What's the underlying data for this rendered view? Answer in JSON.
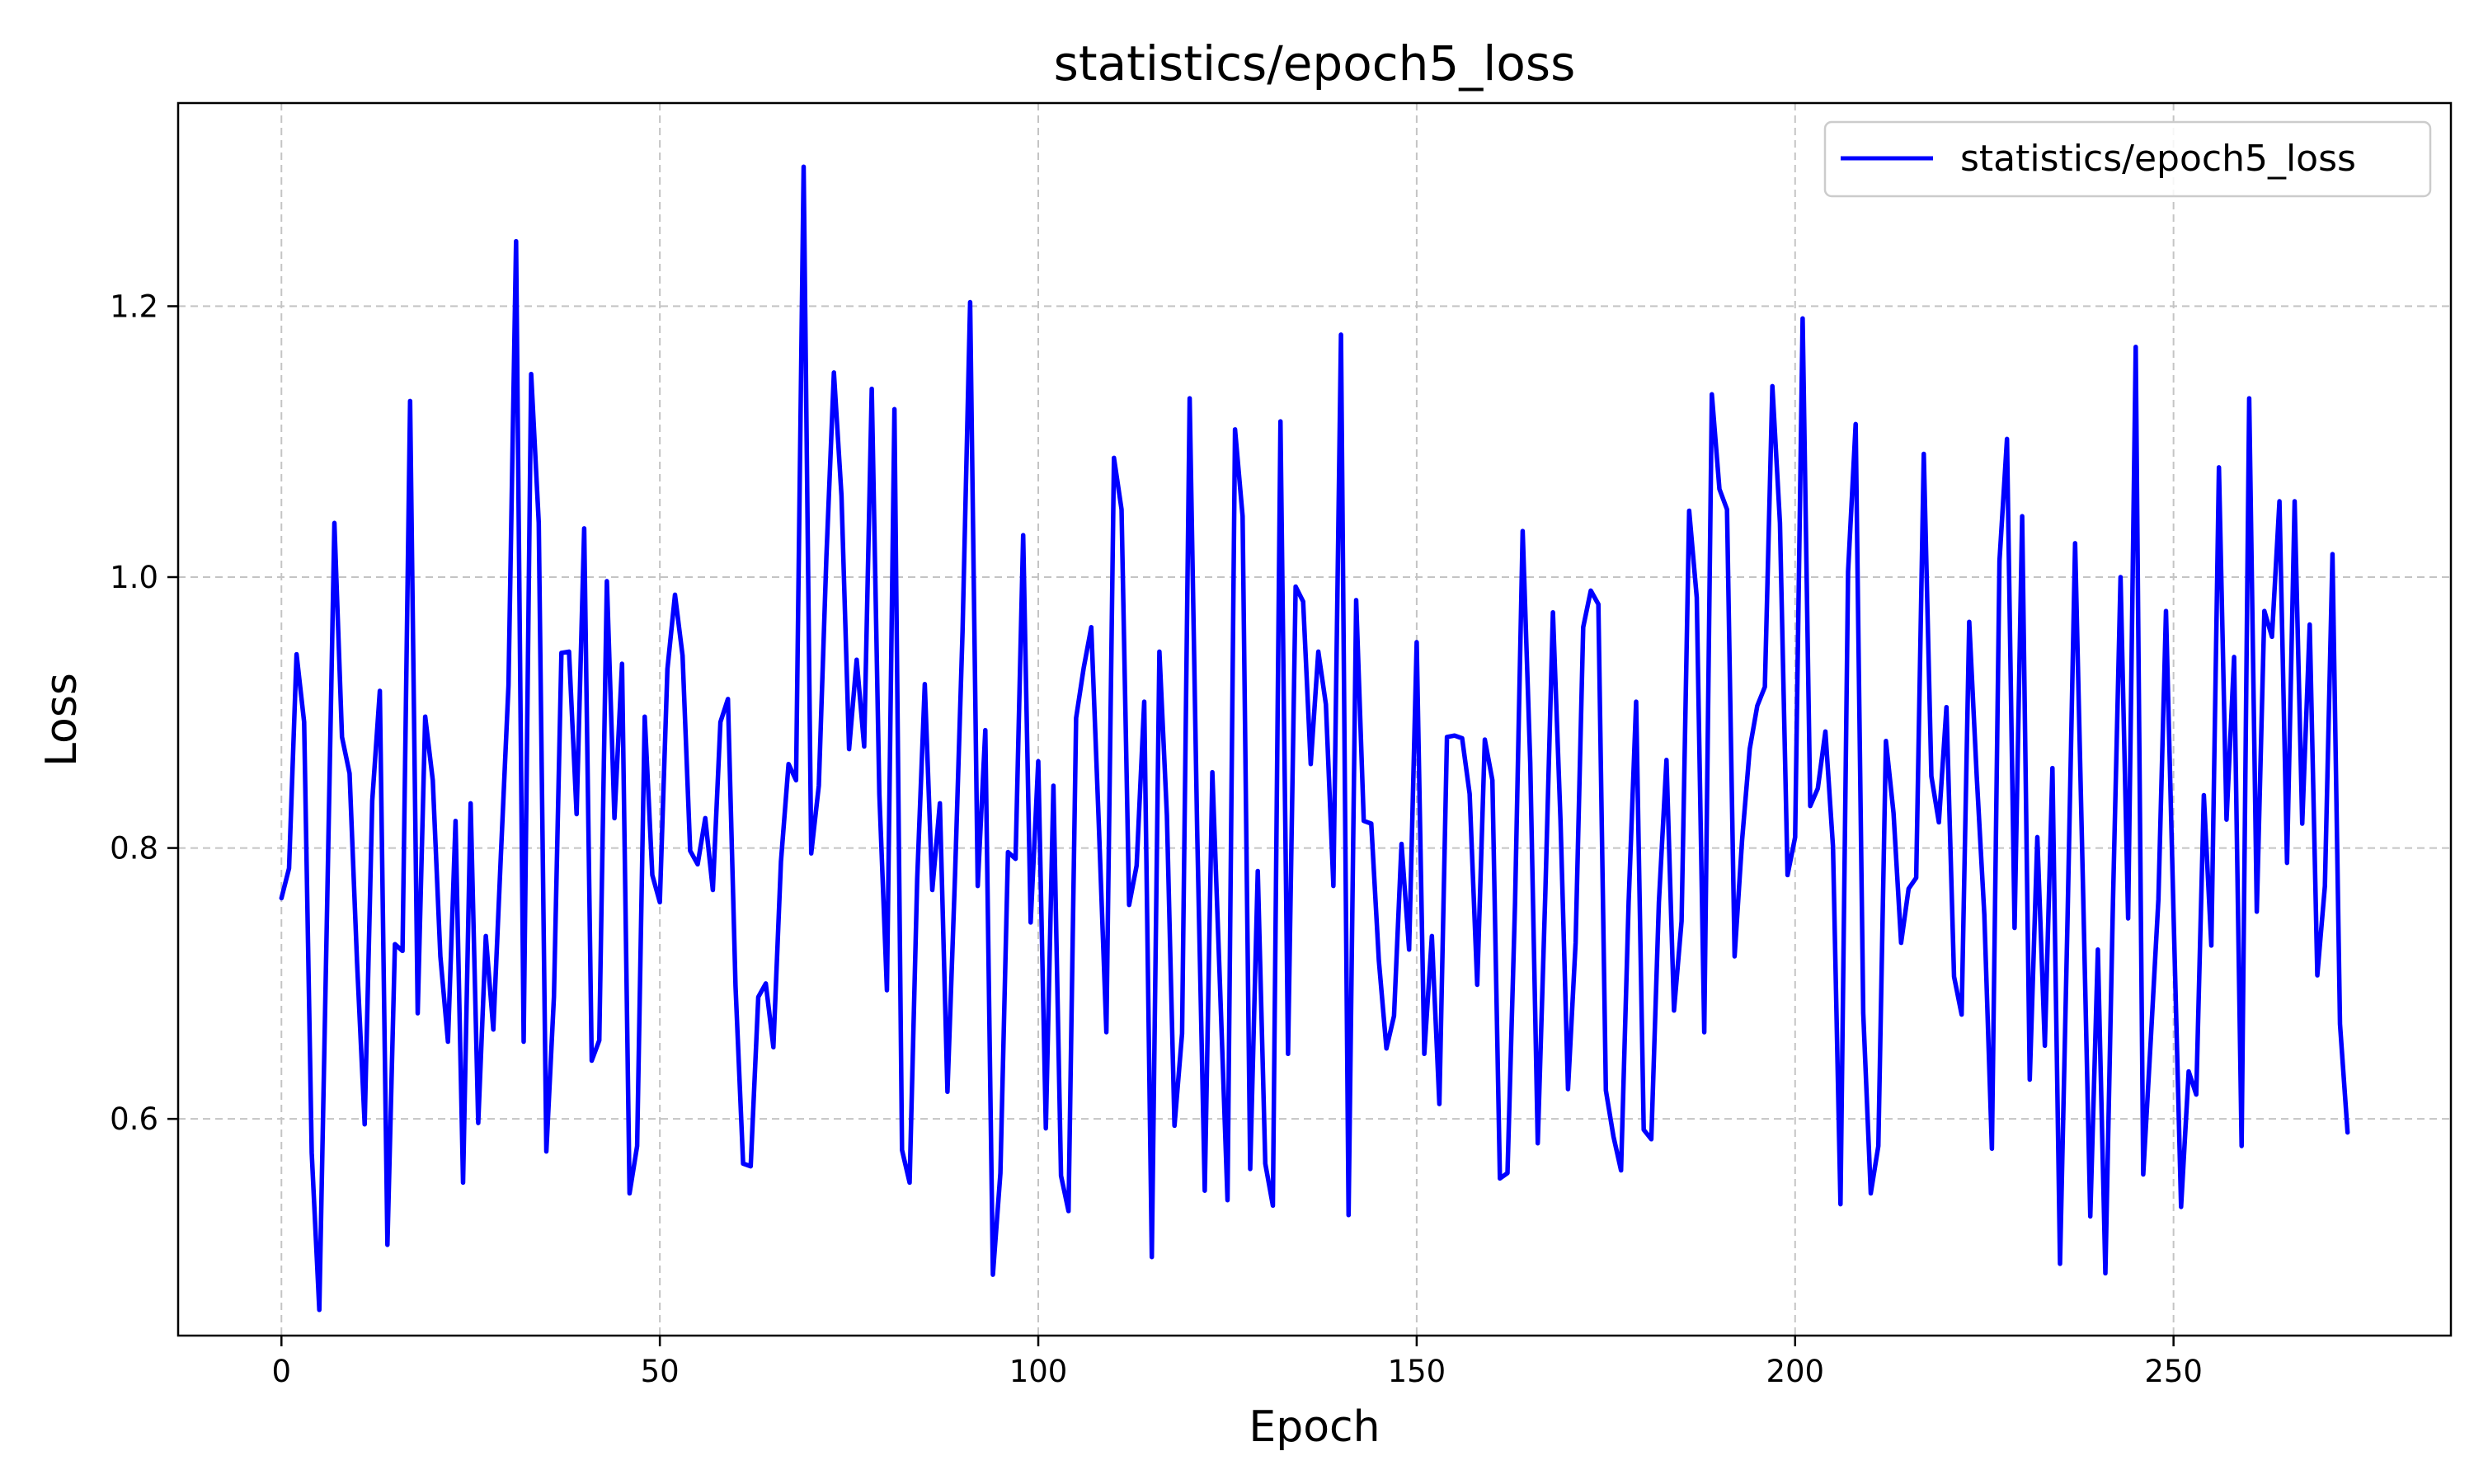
{
  "chart_data": {
    "type": "line",
    "title": "statistics/epoch5_loss",
    "xlabel": "Epoch",
    "ylabel": "Loss",
    "xlim": [
      -13.65,
      286.65
    ],
    "ylim": [
      0.44,
      1.35
    ],
    "xticks": [
      0,
      50,
      100,
      150,
      200,
      250
    ],
    "yticks": [
      0.6,
      0.8,
      1.0,
      1.2
    ],
    "ytick_labels": [
      "0.6",
      "0.8",
      "1.0",
      "1.2"
    ],
    "grid": true,
    "legend_position": "top-right",
    "series": [
      {
        "name": "statistics/epoch5_loss",
        "color": "#0000ff",
        "x": [
          0,
          1,
          2,
          3,
          4,
          5,
          6,
          7,
          8,
          9,
          10,
          11,
          12,
          13,
          14,
          15,
          16,
          17,
          18,
          19,
          20,
          21,
          22,
          23,
          24,
          25,
          26,
          27,
          28,
          29,
          30,
          31,
          32,
          33,
          34,
          35,
          36,
          37,
          38,
          39,
          40,
          41,
          42,
          43,
          44,
          45,
          46,
          47,
          48,
          49,
          50,
          51,
          52,
          53,
          54,
          55,
          56,
          57,
          58,
          59,
          60,
          61,
          62,
          63,
          64,
          65,
          66,
          67,
          68,
          69,
          70,
          71,
          72,
          73,
          74,
          75,
          76,
          77,
          78,
          79,
          80,
          81,
          82,
          83,
          84,
          85,
          86,
          87,
          88,
          89,
          90,
          91,
          92,
          93,
          94,
          95,
          96,
          97,
          98,
          99,
          100,
          101,
          102,
          103,
          104,
          105,
          106,
          107,
          108,
          109,
          110,
          111,
          112,
          113,
          114,
          115,
          116,
          117,
          118,
          119,
          120,
          121,
          122,
          123,
          124,
          125,
          126,
          127,
          128,
          129,
          130,
          131,
          132,
          133,
          134,
          135,
          136,
          137,
          138,
          139,
          140,
          141,
          142,
          143,
          144,
          145,
          146,
          147,
          148,
          149,
          150,
          151,
          152,
          153,
          154,
          155,
          156,
          157,
          158,
          159,
          160,
          161,
          162,
          163,
          164,
          165,
          166,
          167,
          168,
          169,
          170,
          171,
          172,
          173,
          174,
          175,
          176,
          177,
          178,
          179,
          180,
          181,
          182,
          183,
          184,
          185,
          186,
          187,
          188,
          189,
          190,
          191,
          192,
          193,
          194,
          195,
          196,
          197,
          198,
          199,
          200,
          201,
          202,
          203,
          204,
          205,
          206,
          207,
          208,
          209,
          210,
          211,
          212,
          213,
          214,
          215,
          216,
          217,
          218,
          219,
          220,
          221,
          222,
          223,
          224,
          225,
          226,
          227,
          228,
          229,
          230,
          231,
          232,
          233,
          234,
          235,
          236,
          237,
          238,
          239,
          240,
          241,
          242,
          243,
          244,
          245,
          246,
          247,
          248,
          249,
          250,
          251,
          252,
          253,
          254,
          255,
          256,
          257,
          258,
          259,
          260,
          261,
          262,
          263,
          264,
          265,
          266,
          267,
          268,
          269,
          270,
          271,
          272,
          273
        ],
        "y": [
          0.763,
          0.785,
          0.943,
          0.893,
          0.575,
          0.459,
          0.745,
          1.04,
          0.882,
          0.855,
          0.715,
          0.596,
          0.835,
          0.916,
          0.507,
          0.729,
          0.724,
          1.13,
          0.678,
          0.897,
          0.85,
          0.72,
          0.657,
          0.82,
          0.553,
          0.833,
          0.597,
          0.735,
          0.666,
          0.795,
          0.92,
          1.248,
          0.657,
          1.15,
          1.04,
          0.576,
          0.69,
          0.944,
          0.945,
          0.825,
          1.036,
          0.643,
          0.658,
          0.997,
          0.822,
          0.936,
          0.545,
          0.58,
          0.897,
          0.78,
          0.76,
          0.932,
          0.987,
          0.942,
          0.798,
          0.788,
          0.822,
          0.769,
          0.893,
          0.91,
          0.698,
          0.567,
          0.565,
          0.69,
          0.7,
          0.653,
          0.79,
          0.862,
          0.85,
          1.303,
          0.796,
          0.846,
          1.015,
          1.151,
          1.06,
          0.873,
          0.939,
          0.875,
          1.139,
          0.84,
          0.695,
          1.124,
          0.577,
          0.553,
          0.777,
          0.921,
          0.769,
          0.833,
          0.62,
          0.78,
          0.96,
          1.203,
          0.772,
          0.887,
          0.485,
          0.56,
          0.797,
          0.792,
          1.031,
          0.745,
          0.864,
          0.593,
          0.846,
          0.558,
          0.532,
          0.896,
          0.933,
          0.963,
          0.818,
          0.664,
          1.088,
          1.05,
          0.758,
          0.787,
          0.908,
          0.498,
          0.945,
          0.824,
          0.595,
          0.663,
          1.132,
          0.813,
          0.547,
          0.856,
          0.7,
          0.54,
          1.109,
          1.045,
          0.563,
          0.783,
          0.567,
          0.536,
          1.115,
          0.648,
          0.993,
          0.982,
          0.862,
          0.945,
          0.906,
          0.772,
          1.179,
          0.529,
          0.983,
          0.82,
          0.818,
          0.717,
          0.652,
          0.676,
          0.803,
          0.725,
          0.952,
          0.648,
          0.735,
          0.611,
          0.882,
          0.883,
          0.881,
          0.84,
          0.699,
          0.88,
          0.85,
          0.556,
          0.56,
          0.76,
          1.034,
          0.863,
          0.582,
          0.767,
          0.974,
          0.82,
          0.622,
          0.73,
          0.963,
          0.99,
          0.98,
          0.621,
          0.587,
          0.562,
          0.76,
          0.908,
          0.592,
          0.585,
          0.76,
          0.865,
          0.68,
          0.746,
          1.049,
          0.985,
          0.664,
          1.135,
          1.065,
          1.05,
          0.72,
          0.806,
          0.873,
          0.905,
          0.919,
          1.141,
          1.04,
          0.78,
          0.808,
          1.191,
          0.831,
          0.844,
          0.886,
          0.801,
          0.537,
          1.004,
          1.113,
          0.678,
          0.545,
          0.58,
          0.879,
          0.826,
          0.73,
          0.77,
          0.778,
          1.091,
          0.853,
          0.819,
          0.904,
          0.705,
          0.677,
          0.967,
          0.853,
          0.751,
          0.578,
          1.012,
          1.102,
          0.741,
          1.045,
          0.629,
          0.808,
          0.654,
          0.859,
          0.493,
          0.75,
          1.025,
          0.781,
          0.528,
          0.725,
          0.486,
          0.76,
          1.0,
          0.748,
          1.17,
          0.559,
          0.659,
          0.762,
          0.975,
          0.753,
          0.535,
          0.635,
          0.618,
          0.839,
          0.728,
          1.081,
          0.821,
          0.941,
          0.58,
          1.132,
          0.753,
          0.975,
          0.956,
          1.056,
          0.789,
          1.056,
          0.818,
          0.965,
          0.706,
          0.772,
          1.017,
          0.67,
          0.59
        ]
      }
    ]
  }
}
